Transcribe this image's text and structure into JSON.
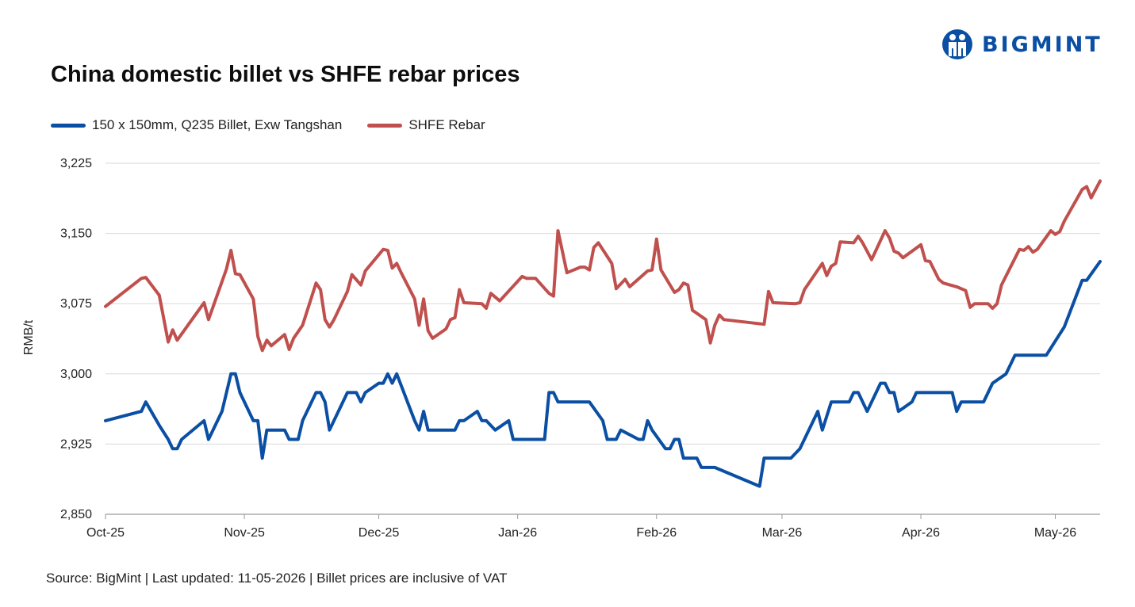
{
  "brand": {
    "name": "BIGMINT"
  },
  "chart_data": {
    "type": "line",
    "title": "China domestic billet vs SHFE rebar prices",
    "ylabel": "RMB/t",
    "ylim": [
      2850,
      3225
    ],
    "yticks": [
      2850,
      2925,
      3000,
      3075,
      3150,
      3225
    ],
    "ytick_labels": [
      "2,850",
      "2,925",
      "3,000",
      "3,075",
      "3,150",
      "3,225"
    ],
    "xlim": [
      "2025-10-01",
      "2026-05-11"
    ],
    "xticks": [
      {
        "date": "2025-10-01",
        "label": "Oct-25"
      },
      {
        "date": "2025-11-01",
        "label": "Nov-25"
      },
      {
        "date": "2025-12-01",
        "label": "Dec-25"
      },
      {
        "date": "2026-01-01",
        "label": "Jan-26"
      },
      {
        "date": "2026-02-01",
        "label": "Feb-26"
      },
      {
        "date": "2026-03-01",
        "label": "Mar-26"
      },
      {
        "date": "2026-04-01",
        "label": "Apr-26"
      },
      {
        "date": "2026-05-01",
        "label": "May-26"
      }
    ],
    "grid": true,
    "legend_position": "top-left",
    "series": [
      {
        "name": "150 x 150mm, Q235 Billet, Exw Tangshan",
        "color": "#0a4fa3",
        "points": [
          [
            "2025-10-01",
            2950
          ],
          [
            "2025-10-09",
            2960
          ],
          [
            "2025-10-10",
            2970
          ],
          [
            "2025-10-13",
            2945
          ],
          [
            "2025-10-15",
            2930
          ],
          [
            "2025-10-16",
            2920
          ],
          [
            "2025-10-17",
            2920
          ],
          [
            "2025-10-18",
            2930
          ],
          [
            "2025-10-23",
            2950
          ],
          [
            "2025-10-24",
            2930
          ],
          [
            "2025-10-27",
            2960
          ],
          [
            "2025-10-29",
            3000
          ],
          [
            "2025-10-30",
            3000
          ],
          [
            "2025-10-31",
            2980
          ],
          [
            "2025-11-03",
            2950
          ],
          [
            "2025-11-04",
            2950
          ],
          [
            "2025-11-05",
            2910
          ],
          [
            "2025-11-06",
            2940
          ],
          [
            "2025-11-10",
            2940
          ],
          [
            "2025-11-11",
            2930
          ],
          [
            "2025-11-13",
            2930
          ],
          [
            "2025-11-14",
            2950
          ],
          [
            "2025-11-17",
            2980
          ],
          [
            "2025-11-18",
            2980
          ],
          [
            "2025-11-19",
            2970
          ],
          [
            "2025-11-20",
            2940
          ],
          [
            "2025-11-24",
            2980
          ],
          [
            "2025-11-26",
            2980
          ],
          [
            "2025-11-27",
            2970
          ],
          [
            "2025-11-28",
            2980
          ],
          [
            "2025-12-01",
            2990
          ],
          [
            "2025-12-02",
            2990
          ],
          [
            "2025-12-03",
            3000
          ],
          [
            "2025-12-04",
            2990
          ],
          [
            "2025-12-05",
            3000
          ],
          [
            "2025-12-09",
            2950
          ],
          [
            "2025-12-10",
            2940
          ],
          [
            "2025-12-11",
            2960
          ],
          [
            "2025-12-12",
            2940
          ],
          [
            "2025-12-18",
            2940
          ],
          [
            "2025-12-19",
            2950
          ],
          [
            "2025-12-20",
            2950
          ],
          [
            "2025-12-23",
            2960
          ],
          [
            "2025-12-24",
            2950
          ],
          [
            "2025-12-25",
            2950
          ],
          [
            "2025-12-27",
            2940
          ],
          [
            "2025-12-30",
            2950
          ],
          [
            "2025-12-31",
            2930
          ],
          [
            "2026-01-07",
            2930
          ],
          [
            "2026-01-08",
            2980
          ],
          [
            "2026-01-09",
            2980
          ],
          [
            "2026-01-10",
            2970
          ],
          [
            "2026-01-17",
            2970
          ],
          [
            "2026-01-20",
            2950
          ],
          [
            "2026-01-21",
            2930
          ],
          [
            "2026-01-23",
            2930
          ],
          [
            "2026-01-24",
            2940
          ],
          [
            "2026-01-28",
            2930
          ],
          [
            "2026-01-29",
            2930
          ],
          [
            "2026-01-30",
            2950
          ],
          [
            "2026-01-31",
            2940
          ],
          [
            "2026-02-03",
            2920
          ],
          [
            "2026-02-04",
            2920
          ],
          [
            "2026-02-05",
            2930
          ],
          [
            "2026-02-06",
            2930
          ],
          [
            "2026-02-07",
            2910
          ],
          [
            "2026-02-10",
            2910
          ],
          [
            "2026-02-11",
            2900
          ],
          [
            "2026-02-14",
            2900
          ],
          [
            "2026-02-24",
            2880
          ],
          [
            "2026-02-25",
            2910
          ],
          [
            "2026-03-03",
            2910
          ],
          [
            "2026-03-05",
            2920
          ],
          [
            "2026-03-09",
            2960
          ],
          [
            "2026-03-10",
            2940
          ],
          [
            "2026-03-12",
            2970
          ],
          [
            "2026-03-16",
            2970
          ],
          [
            "2026-03-17",
            2980
          ],
          [
            "2026-03-18",
            2980
          ],
          [
            "2026-03-20",
            2960
          ],
          [
            "2026-03-23",
            2990
          ],
          [
            "2026-03-24",
            2990
          ],
          [
            "2026-03-25",
            2980
          ],
          [
            "2026-03-26",
            2980
          ],
          [
            "2026-03-27",
            2960
          ],
          [
            "2026-03-30",
            2970
          ],
          [
            "2026-03-31",
            2980
          ],
          [
            "2026-04-08",
            2980
          ],
          [
            "2026-04-09",
            2960
          ],
          [
            "2026-04-10",
            2970
          ],
          [
            "2026-04-15",
            2970
          ],
          [
            "2026-04-17",
            2990
          ],
          [
            "2026-04-20",
            3000
          ],
          [
            "2026-04-22",
            3020
          ],
          [
            "2026-04-29",
            3020
          ],
          [
            "2026-05-03",
            3050
          ],
          [
            "2026-05-07",
            3100
          ],
          [
            "2026-05-08",
            3100
          ],
          [
            "2026-05-11",
            3120
          ]
        ]
      },
      {
        "name": "SHFE Rebar",
        "color": "#c0504d",
        "points": [
          [
            "2025-10-01",
            3072
          ],
          [
            "2025-10-09",
            3102
          ],
          [
            "2025-10-10",
            3103
          ],
          [
            "2025-10-13",
            3084
          ],
          [
            "2025-10-15",
            3034
          ],
          [
            "2025-10-16",
            3047
          ],
          [
            "2025-10-17",
            3036
          ],
          [
            "2025-10-23",
            3076
          ],
          [
            "2025-10-24",
            3058
          ],
          [
            "2025-10-28",
            3112
          ],
          [
            "2025-10-29",
            3132
          ],
          [
            "2025-10-30",
            3107
          ],
          [
            "2025-10-31",
            3106
          ],
          [
            "2025-11-03",
            3080
          ],
          [
            "2025-11-04",
            3040
          ],
          [
            "2025-11-05",
            3025
          ],
          [
            "2025-11-06",
            3036
          ],
          [
            "2025-11-07",
            3030
          ],
          [
            "2025-11-10",
            3042
          ],
          [
            "2025-11-11",
            3026
          ],
          [
            "2025-11-12",
            3038
          ],
          [
            "2025-11-14",
            3052
          ],
          [
            "2025-11-17",
            3097
          ],
          [
            "2025-11-18",
            3090
          ],
          [
            "2025-11-19",
            3058
          ],
          [
            "2025-11-20",
            3050
          ],
          [
            "2025-11-21",
            3058
          ],
          [
            "2025-11-24",
            3088
          ],
          [
            "2025-11-25",
            3106
          ],
          [
            "2025-11-27",
            3095
          ],
          [
            "2025-11-28",
            3110
          ],
          [
            "2025-12-02",
            3133
          ],
          [
            "2025-12-03",
            3132
          ],
          [
            "2025-12-04",
            3113
          ],
          [
            "2025-12-05",
            3118
          ],
          [
            "2025-12-06",
            3108
          ],
          [
            "2025-12-09",
            3080
          ],
          [
            "2025-12-10",
            3052
          ],
          [
            "2025-12-11",
            3080
          ],
          [
            "2025-12-12",
            3046
          ],
          [
            "2025-12-13",
            3038
          ],
          [
            "2025-12-16",
            3048
          ],
          [
            "2025-12-17",
            3058
          ],
          [
            "2025-12-18",
            3060
          ],
          [
            "2025-12-19",
            3090
          ],
          [
            "2025-12-20",
            3076
          ],
          [
            "2025-12-24",
            3075
          ],
          [
            "2025-12-25",
            3070
          ],
          [
            "2025-12-26",
            3086
          ],
          [
            "2025-12-28",
            3078
          ],
          [
            "2026-01-02",
            3104
          ],
          [
            "2026-01-03",
            3102
          ],
          [
            "2026-01-05",
            3102
          ],
          [
            "2026-01-08",
            3086
          ],
          [
            "2026-01-09",
            3083
          ],
          [
            "2026-01-10",
            3153
          ],
          [
            "2026-01-12",
            3108
          ],
          [
            "2026-01-15",
            3114
          ],
          [
            "2026-01-16",
            3114
          ],
          [
            "2026-01-17",
            3111
          ],
          [
            "2026-01-18",
            3135
          ],
          [
            "2026-01-19",
            3140
          ],
          [
            "2026-01-22",
            3118
          ],
          [
            "2026-01-23",
            3091
          ],
          [
            "2026-01-25",
            3101
          ],
          [
            "2026-01-26",
            3093
          ],
          [
            "2026-01-30",
            3110
          ],
          [
            "2026-01-31",
            3111
          ],
          [
            "2026-02-01",
            3144
          ],
          [
            "2026-02-02",
            3111
          ],
          [
            "2026-02-05",
            3087
          ],
          [
            "2026-02-06",
            3090
          ],
          [
            "2026-02-07",
            3097
          ],
          [
            "2026-02-08",
            3095
          ],
          [
            "2026-02-09",
            3068
          ],
          [
            "2026-02-12",
            3058
          ],
          [
            "2026-02-13",
            3033
          ],
          [
            "2026-02-14",
            3052
          ],
          [
            "2026-02-15",
            3063
          ],
          [
            "2026-02-16",
            3058
          ],
          [
            "2026-02-25",
            3053
          ],
          [
            "2026-02-26",
            3088
          ],
          [
            "2026-02-27",
            3076
          ],
          [
            "2026-03-04",
            3075
          ],
          [
            "2026-03-05",
            3076
          ],
          [
            "2026-03-06",
            3090
          ],
          [
            "2026-03-10",
            3118
          ],
          [
            "2026-03-11",
            3105
          ],
          [
            "2026-03-12",
            3115
          ],
          [
            "2026-03-13",
            3118
          ],
          [
            "2026-03-14",
            3141
          ],
          [
            "2026-03-17",
            3140
          ],
          [
            "2026-03-18",
            3147
          ],
          [
            "2026-03-19",
            3140
          ],
          [
            "2026-03-21",
            3122
          ],
          [
            "2026-03-24",
            3153
          ],
          [
            "2026-03-25",
            3145
          ],
          [
            "2026-03-26",
            3131
          ],
          [
            "2026-03-27",
            3129
          ],
          [
            "2026-03-28",
            3124
          ],
          [
            "2026-04-01",
            3138
          ],
          [
            "2026-04-02",
            3121
          ],
          [
            "2026-04-03",
            3120
          ],
          [
            "2026-04-05",
            3101
          ],
          [
            "2026-04-06",
            3097
          ],
          [
            "2026-04-09",
            3093
          ],
          [
            "2026-04-11",
            3089
          ],
          [
            "2026-04-12",
            3071
          ],
          [
            "2026-04-13",
            3075
          ],
          [
            "2026-04-16",
            3075
          ],
          [
            "2026-04-17",
            3070
          ],
          [
            "2026-04-18",
            3075
          ],
          [
            "2026-04-19",
            3095
          ],
          [
            "2026-04-23",
            3133
          ],
          [
            "2026-04-24",
            3132
          ],
          [
            "2026-04-25",
            3136
          ],
          [
            "2026-04-26",
            3130
          ],
          [
            "2026-04-27",
            3133
          ],
          [
            "2026-04-30",
            3153
          ],
          [
            "2026-05-01",
            3149
          ],
          [
            "2026-05-02",
            3152
          ],
          [
            "2026-05-03",
            3163
          ],
          [
            "2026-05-07",
            3197
          ],
          [
            "2026-05-08",
            3200
          ],
          [
            "2026-05-09",
            3188
          ],
          [
            "2026-05-11",
            3206
          ]
        ]
      }
    ]
  },
  "footer": {
    "source": "Source: BigMint | Last updated: 11-05-2026 | Billet prices are inclusive of VAT"
  }
}
